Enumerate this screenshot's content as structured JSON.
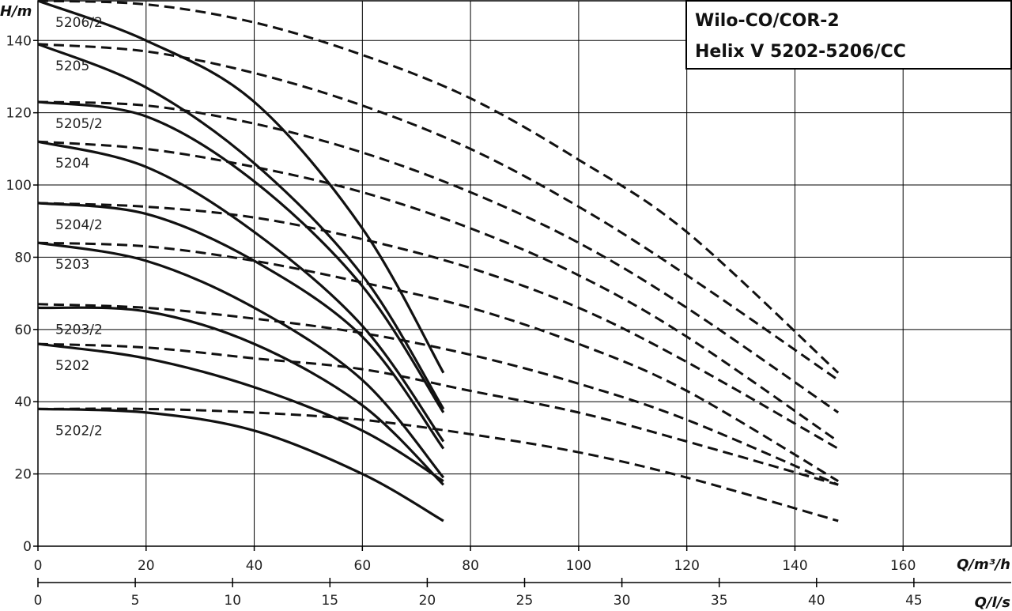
{
  "chart_data": {
    "type": "line",
    "title": [
      "Wilo-CO/COR-2",
      "Helix V 5202-5206/CC"
    ],
    "ylabel": "H/m",
    "xlabel": "Q/m³/h",
    "x2label": "Q/l/s",
    "xlim": [
      0,
      180
    ],
    "ylim": [
      0,
      151
    ],
    "x2lim": [
      0,
      50
    ],
    "xticks": [
      0,
      20,
      40,
      60,
      80,
      100,
      120,
      140,
      160
    ],
    "x2ticks": [
      0,
      5,
      10,
      15,
      20,
      25,
      30,
      35,
      40,
      45
    ],
    "yticks": [
      0,
      20,
      40,
      60,
      80,
      100,
      120,
      140
    ],
    "grid": true,
    "series": [
      {
        "name": "5206/2",
        "single_x": [
          0,
          20,
          40,
          60,
          75
        ],
        "single_y": [
          151,
          140,
          123,
          88,
          48
        ],
        "double_x": [
          0,
          20,
          40,
          60,
          80,
          100,
          120,
          148
        ],
        "double_y": [
          151,
          150,
          145,
          136,
          124,
          107,
          87,
          48
        ]
      },
      {
        "name": "5205",
        "single_x": [
          0,
          20,
          40,
          60,
          75
        ],
        "single_y": [
          139,
          127,
          106,
          75,
          38
        ],
        "double_x": [
          0,
          20,
          40,
          60,
          80,
          100,
          120,
          148
        ],
        "double_y": [
          139,
          137,
          131,
          122,
          110,
          94,
          75,
          46
        ]
      },
      {
        "name": "5205/2",
        "single_x": [
          0,
          20,
          40,
          60,
          75
        ],
        "single_y": [
          123,
          119,
          101,
          72,
          37
        ],
        "double_x": [
          0,
          20,
          40,
          60,
          80,
          100,
          120,
          148
        ],
        "double_y": [
          123,
          122,
          117,
          109,
          98,
          84,
          66,
          37
        ]
      },
      {
        "name": "5204",
        "single_x": [
          0,
          20,
          40,
          60,
          75
        ],
        "single_y": [
          112,
          105,
          87,
          61,
          29
        ],
        "double_x": [
          0,
          20,
          40,
          60,
          80,
          100,
          120,
          148
        ],
        "double_y": [
          112,
          110,
          105,
          98,
          88,
          75,
          58,
          29
        ]
      },
      {
        "name": "5204/2",
        "single_x": [
          0,
          20,
          40,
          60,
          75
        ],
        "single_y": [
          95,
          92,
          79,
          58,
          27
        ],
        "double_x": [
          0,
          20,
          40,
          60,
          80,
          100,
          120,
          148
        ],
        "double_y": [
          95,
          94,
          91,
          85,
          77,
          66,
          51,
          27
        ]
      },
      {
        "name": "5203",
        "single_x": [
          0,
          20,
          40,
          60,
          75
        ],
        "single_y": [
          84,
          79,
          66,
          46,
          19
        ],
        "double_x": [
          0,
          20,
          40,
          60,
          80,
          100,
          120,
          148
        ],
        "double_y": [
          84,
          83,
          79,
          73,
          66,
          56,
          43,
          18
        ]
      },
      {
        "name": "5203/2",
        "single_x": [
          0,
          20,
          40,
          60,
          75
        ],
        "single_y": [
          66,
          65,
          56,
          39,
          17
        ],
        "double_x": [
          0,
          20,
          40,
          60,
          80,
          100,
          120,
          148
        ],
        "double_y": [
          67,
          66,
          63,
          59,
          53,
          45,
          35,
          17
        ]
      },
      {
        "name": "5202",
        "single_x": [
          0,
          20,
          40,
          60,
          75
        ],
        "single_y": [
          56,
          52,
          44,
          32,
          18
        ],
        "double_x": [
          0,
          20,
          40,
          60,
          80,
          100,
          120,
          148
        ],
        "double_y": [
          56,
          55,
          52,
          49,
          43,
          37,
          29,
          17
        ]
      },
      {
        "name": "5202/2",
        "single_x": [
          0,
          20,
          40,
          60,
          75
        ],
        "single_y": [
          38,
          37,
          32,
          20,
          7
        ],
        "double_x": [
          0,
          20,
          40,
          60,
          80,
          100,
          120,
          148
        ],
        "double_y": [
          38,
          38,
          37,
          35,
          31,
          26,
          19,
          7
        ]
      }
    ]
  },
  "colors": {
    "grid": "#000000",
    "curve": "#111111"
  }
}
